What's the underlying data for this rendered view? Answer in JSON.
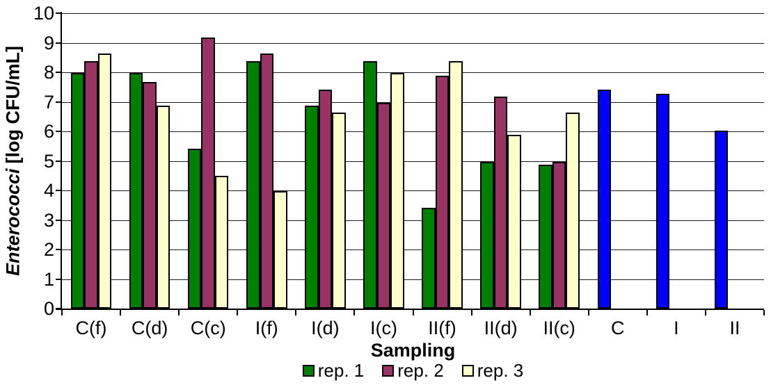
{
  "chart_data": {
    "type": "bar",
    "title": "",
    "xlabel": "Sampling",
    "ylabel_italic": "Enterococci",
    "ylabel_rest": " [log CFU/mL]",
    "ylim": [
      0,
      10
    ],
    "ytick_step": 1,
    "grid": "horizontal",
    "legend_position": "bottom",
    "categories": [
      "C(f)",
      "C(d)",
      "C(c)",
      "I(f)",
      "I(d)",
      "I(c)",
      "II(f)",
      "II(d)",
      "II(c)",
      "C",
      "I",
      "II"
    ],
    "series": [
      {
        "name": "rep. 1",
        "color": "#008000",
        "in_legend": true,
        "values": [
          7.97,
          7.97,
          5.42,
          8.38,
          6.88,
          8.38,
          3.41,
          4.97,
          4.88,
          null,
          null,
          null
        ]
      },
      {
        "name": "rep. 2",
        "color": "#993366",
        "in_legend": true,
        "values": [
          8.38,
          7.66,
          9.17,
          8.64,
          7.42,
          6.97,
          7.88,
          7.17,
          4.97,
          null,
          null,
          null
        ]
      },
      {
        "name": "rep. 3",
        "color": "#ffffcc",
        "in_legend": true,
        "values": [
          8.64,
          6.88,
          4.49,
          3.97,
          6.64,
          7.97,
          8.38,
          5.88,
          6.64,
          null,
          null,
          null
        ]
      },
      {
        "name": "",
        "color": "#0000ff",
        "in_legend": false,
        "values": [
          null,
          null,
          null,
          null,
          null,
          null,
          null,
          null,
          null,
          7.41,
          7.26,
          6.03
        ]
      }
    ]
  }
}
